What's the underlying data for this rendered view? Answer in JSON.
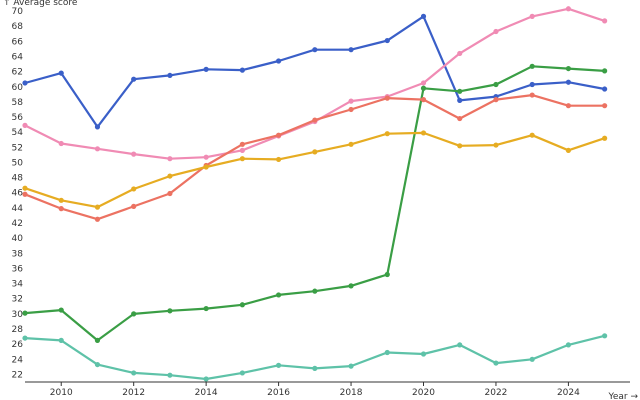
{
  "chart_data": {
    "type": "line",
    "ylabel": "↑ Average score",
    "xlabel": "Year →",
    "xlim": [
      2009,
      2025.7
    ],
    "ylim": [
      21,
      70.8
    ],
    "x_ticks": [
      2010,
      2012,
      2014,
      2016,
      2018,
      2020,
      2022,
      2024
    ],
    "y_ticks": [
      22,
      24,
      26,
      28,
      30,
      32,
      34,
      36,
      38,
      40,
      42,
      44,
      46,
      48,
      50,
      52,
      54,
      56,
      58,
      60,
      62,
      64,
      66,
      68,
      70
    ],
    "grid": false,
    "x": [
      2009,
      2010,
      2011,
      2012,
      2013,
      2014,
      2015,
      2016,
      2017,
      2018,
      2019,
      2020,
      2021,
      2022,
      2023,
      2024,
      2025
    ],
    "series": [
      {
        "color": "#3a5fc8",
        "values": [
          60.5,
          61.8,
          54.7,
          61.0,
          61.5,
          62.3,
          62.2,
          63.4,
          64.9,
          64.9,
          66.1,
          69.3,
          58.2,
          58.7,
          60.3,
          60.6,
          59.7
        ]
      },
      {
        "color": "#f08bb4",
        "values": [
          54.9,
          52.5,
          51.8,
          51.1,
          50.5,
          50.7,
          51.6,
          53.5,
          55.4,
          58.1,
          58.7,
          60.5,
          64.4,
          67.3,
          69.3,
          70.3,
          68.7
        ]
      },
      {
        "color": "#3a9e45",
        "values": [
          30.1,
          30.5,
          26.5,
          30.0,
          30.4,
          30.7,
          31.2,
          32.5,
          33.0,
          33.7,
          35.2,
          59.8,
          59.4,
          60.3,
          62.7,
          62.4,
          62.1
        ]
      },
      {
        "color": "#ec7262",
        "values": [
          45.8,
          43.9,
          42.5,
          44.2,
          45.9,
          49.6,
          52.4,
          53.6,
          55.6,
          57.0,
          58.5,
          58.3,
          55.8,
          58.3,
          58.9,
          57.5,
          57.5
        ]
      },
      {
        "color": "#e6ac22",
        "values": [
          46.6,
          45.0,
          44.1,
          46.5,
          48.2,
          49.4,
          50.5,
          50.4,
          51.4,
          52.4,
          53.8,
          53.9,
          52.2,
          52.3,
          53.6,
          51.6,
          53.2
        ]
      },
      {
        "color": "#5ec2a8",
        "values": [
          26.8,
          26.5,
          23.3,
          22.2,
          21.9,
          21.4,
          22.2,
          23.2,
          22.8,
          23.1,
          24.9,
          24.7,
          25.9,
          23.5,
          24.0,
          25.9,
          27.1
        ]
      }
    ]
  }
}
